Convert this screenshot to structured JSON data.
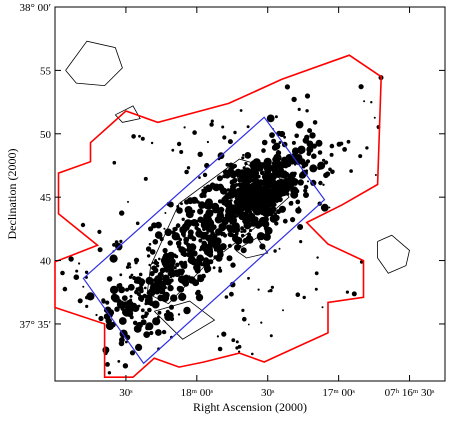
{
  "chart_data": {
    "type": "scatter",
    "title": "",
    "xlabel": "Right Ascension (2000)",
    "ylabel": "Declination (2000)",
    "x_tick_labels": [
      {
        "text": "30ˢ",
        "x_data": 1.0
      },
      {
        "text": "18ᵐ 00ˢ",
        "x_data": 2.0
      },
      {
        "text": "30ˢ",
        "x_data": 3.0
      },
      {
        "text": "17ᵐ 00ˢ",
        "x_data": 4.0
      },
      {
        "text": "07ʰ 16ᵐ 30ˢ",
        "x_data": 5.0
      }
    ],
    "y_tick_labels": [
      {
        "text": "38° 00′",
        "y_data": 60
      },
      {
        "text": "55",
        "y_data": 55
      },
      {
        "text": "50",
        "y_data": 50
      },
      {
        "text": "45",
        "y_data": 45
      },
      {
        "text": "40",
        "y_data": 40
      },
      {
        "text": "37° 35′",
        "y_data": 35
      }
    ],
    "xlim": [
      0.0,
      5.5
    ],
    "ylim": [
      30.5,
      60
    ],
    "grid": false,
    "colors": {
      "survey_boundary": "#ff0000",
      "inner_region": "#2e2ee6",
      "points": "#000000",
      "contours": "#000000"
    },
    "survey_boundary": [
      [
        0.0,
        36.3
      ],
      [
        0.7,
        35.0
      ],
      [
        0.7,
        30.8
      ],
      [
        1.1,
        30.8
      ],
      [
        1.4,
        32.3
      ],
      [
        1.75,
        31.6
      ],
      [
        2.1,
        32.0
      ],
      [
        2.6,
        32.7
      ],
      [
        2.95,
        32.0
      ],
      [
        3.3,
        32.9
      ],
      [
        3.85,
        34.3
      ],
      [
        3.85,
        36.7
      ],
      [
        4.35,
        37.1
      ],
      [
        4.35,
        40.0
      ],
      [
        3.85,
        41.3
      ],
      [
        3.55,
        43.0
      ],
      [
        4.05,
        44.4
      ],
      [
        4.55,
        46.0
      ],
      [
        4.6,
        54.5
      ],
      [
        4.15,
        56.2
      ],
      [
        3.2,
        54.3
      ],
      [
        2.45,
        52.4
      ],
      [
        1.45,
        50.9
      ],
      [
        1.0,
        51.8
      ],
      [
        0.5,
        49.3
      ],
      [
        0.5,
        47.8
      ],
      [
        0.05,
        46.9
      ],
      [
        0.05,
        43.7
      ],
      [
        0.6,
        41.2
      ],
      [
        0.0,
        39.9
      ]
    ],
    "inner_region": [
      [
        0.4,
        38.6
      ],
      [
        1.25,
        31.9
      ],
      [
        3.8,
        44.8
      ],
      [
        2.95,
        51.3
      ]
    ],
    "contours": [
      [
        [
          1.35,
          39.6
        ],
        [
          1.75,
          44.5
        ],
        [
          2.6,
          48.0
        ],
        [
          3.1,
          47.2
        ],
        [
          3.3,
          45.0
        ],
        [
          2.8,
          42.5
        ],
        [
          2.1,
          39.5
        ],
        [
          1.6,
          36.6
        ],
        [
          1.3,
          37.4
        ],
        [
          1.35,
          39.6
        ]
      ],
      [
        [
          2.45,
          45.5
        ],
        [
          2.7,
          47.6
        ],
        [
          3.05,
          46.8
        ],
        [
          3.15,
          45.2
        ],
        [
          2.8,
          44.3
        ],
        [
          2.45,
          45.5
        ]
      ],
      [
        [
          1.4,
          36.0
        ],
        [
          1.8,
          33.8
        ],
        [
          2.25,
          35.3
        ],
        [
          1.9,
          36.8
        ],
        [
          1.4,
          36.0
        ]
      ],
      [
        [
          4.55,
          41.5
        ],
        [
          4.75,
          42.0
        ],
        [
          5.0,
          40.8
        ],
        [
          4.95,
          39.6
        ],
        [
          4.7,
          39.0
        ],
        [
          4.55,
          40.2
        ],
        [
          4.55,
          41.5
        ]
      ],
      [
        [
          0.15,
          55.0
        ],
        [
          0.45,
          57.3
        ],
        [
          0.85,
          56.8
        ],
        [
          0.95,
          55.2
        ],
        [
          0.7,
          53.8
        ],
        [
          0.3,
          54.0
        ],
        [
          0.15,
          55.0
        ]
      ],
      [
        [
          2.55,
          40.8
        ],
        [
          2.85,
          41.8
        ],
        [
          3.0,
          40.6
        ],
        [
          2.7,
          40.2
        ],
        [
          2.55,
          40.8
        ]
      ],
      [
        [
          0.85,
          51.5
        ],
        [
          1.1,
          52.2
        ],
        [
          1.2,
          51.2
        ],
        [
          0.95,
          50.9
        ],
        [
          0.85,
          51.5
        ]
      ]
    ],
    "sources": {
      "count": 1100,
      "distribution": "concentrated along inner region diagonal, densest near RA 2.6-3.1 / Dec 44-47",
      "seed": 12345
    }
  }
}
